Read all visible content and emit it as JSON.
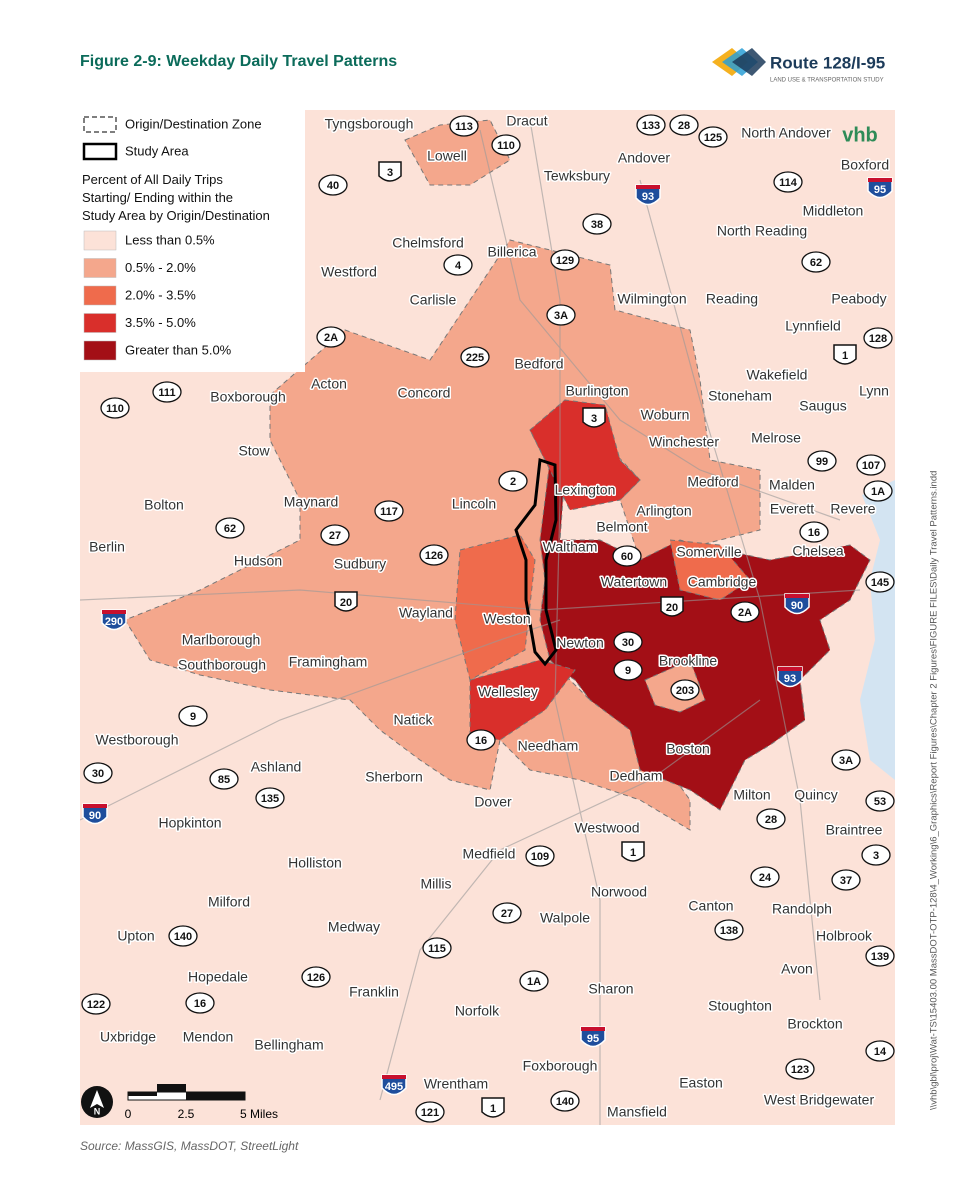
{
  "header": {
    "title": "Figure 2-9: Weekday Daily Travel Patterns"
  },
  "logo": {
    "name": "Route 128/I-95",
    "tagline": "LAND USE & TRANSPORTATION STUDY",
    "firm": "vhb"
  },
  "legend": {
    "zone": "Origin/Destination Zone",
    "study_area": "Study Area",
    "heading": "Percent of All Daily Trips Starting/ Ending within the Study Area by Origin/Destination",
    "classes": [
      {
        "label": "Less than 0.5%",
        "color": "#fce2d8"
      },
      {
        "label": "0.5% - 2.0%",
        "color": "#f4a78c"
      },
      {
        "label": "2.0% - 3.5%",
        "color": "#ef6b4c"
      },
      {
        "label": "3.5% - 5.0%",
        "color": "#d92f2b"
      },
      {
        "label": "Greater than 5.0%",
        "color": "#a30f16"
      }
    ]
  },
  "towns": [
    "Tyngsborough",
    "Dracut",
    "Lowell",
    "Andover",
    "North Andover",
    "Tewksbury",
    "Boxford",
    "Middleton",
    "North Reading",
    "Chelmsford",
    "Billerica",
    "Westford",
    "Carlisle",
    "Wilmington",
    "Reading",
    "Peabody",
    "Lynnfield",
    "Bedford",
    "Burlington",
    "Acton",
    "Concord",
    "Boxborough",
    "Stoneham",
    "Woburn",
    "Wakefield",
    "Saugus",
    "Lynn",
    "Winchester",
    "Melrose",
    "Stow",
    "Lexington",
    "Medford",
    "Malden",
    "Everett",
    "Revere",
    "Lincoln",
    "Maynard",
    "Bolton",
    "Arlington",
    "Belmont",
    "Waltham",
    "Somerville",
    "Chelsea",
    "Berlin",
    "Hudson",
    "Sudbury",
    "Watertown",
    "Cambridge",
    "Wayland",
    "Weston",
    "Newton",
    "Marlborough",
    "Southborough",
    "Framingham",
    "Brookline",
    "Wellesley",
    "Natick",
    "Westborough",
    "Boston",
    "Ashland",
    "Needham",
    "Dedham",
    "Sherborn",
    "Dover",
    "Milton",
    "Quincy",
    "Braintree",
    "Hopkinton",
    "Westwood",
    "Medfield",
    "Holliston",
    "Millis",
    "Norwood",
    "Milford",
    "Canton",
    "Randolph",
    "Walpole",
    "Medway",
    "Upton",
    "Holbrook",
    "Avon",
    "Hopedale",
    "Franklin",
    "Sharon",
    "Norfolk",
    "Stoughton",
    "Brockton",
    "Uxbridge",
    "Mendon",
    "Bellingham",
    "Foxborough",
    "Wrentham",
    "Easton",
    "West Bridgewater",
    "Mansfield"
  ],
  "routes": [
    "113",
    "110",
    "133",
    "28",
    "125",
    "3",
    "40",
    "93",
    "114",
    "95",
    "38",
    "4",
    "129",
    "62",
    "3A",
    "2A",
    "128",
    "1",
    "225",
    "111",
    "110",
    "3",
    "2",
    "99",
    "107",
    "1A",
    "117",
    "16",
    "27",
    "62",
    "126",
    "60",
    "145",
    "20",
    "20",
    "90",
    "2A",
    "290",
    "30",
    "9",
    "203",
    "93",
    "9",
    "16",
    "3A",
    "30",
    "85",
    "135",
    "53",
    "90",
    "28",
    "109",
    "1",
    "3",
    "37",
    "24",
    "27",
    "140",
    "138",
    "115",
    "126",
    "1A",
    "139",
    "122",
    "16",
    "95",
    "14",
    "123",
    "495",
    "121",
    "1",
    "140"
  ],
  "scale": {
    "labels": [
      "0",
      "2.5",
      "5 Miles"
    ],
    "north": "N"
  },
  "source": "Source: MassGIS, MassDOT, StreetLight",
  "file_path": "\\\\vhb\\gbl\\proj\\Wat-TS\\15403.00 MassDOT-OTP-128\\4_Working\\6_Graphics\\Report Figures\\Chapter 2 Figures\\FIGURE FILES\\Daily Travel Patterns.indd"
}
